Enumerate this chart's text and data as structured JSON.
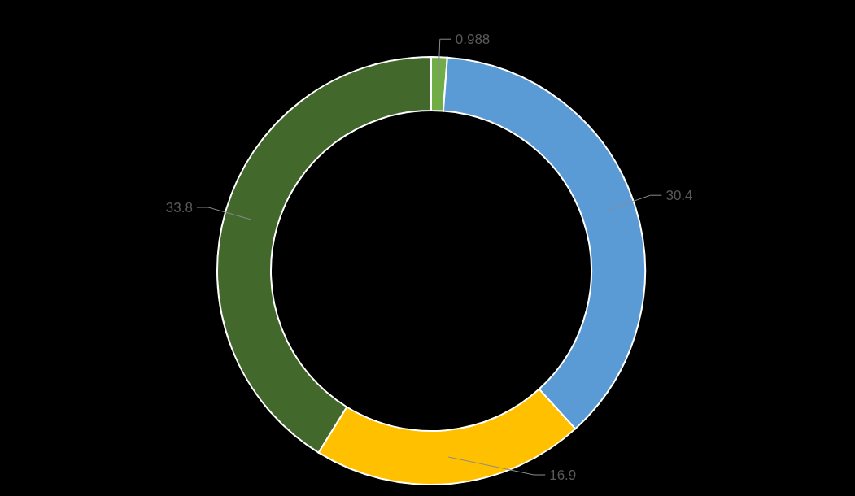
{
  "chart_data": {
    "type": "donut",
    "categories": [
      null,
      null,
      null,
      null
    ],
    "values": [
      0.988,
      30.4,
      16.9,
      33.8
    ],
    "colors": [
      "#70ad47",
      "#5b9bd5",
      "#ffc000",
      "#43682b"
    ],
    "data_labels": true
  }
}
